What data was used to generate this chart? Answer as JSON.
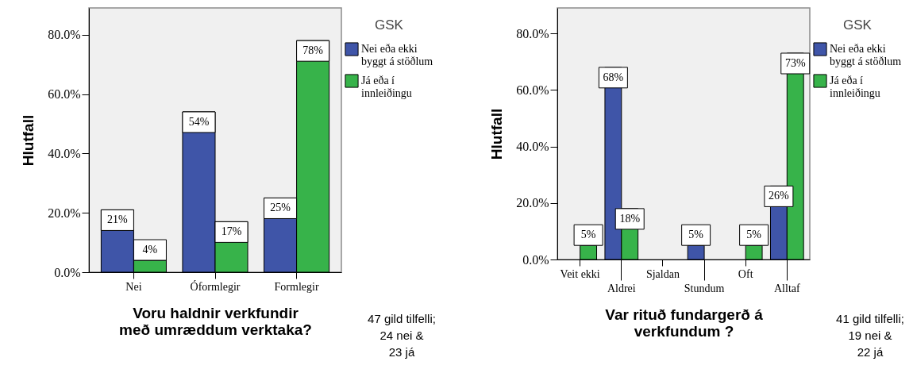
{
  "chart_data": [
    {
      "type": "bar",
      "categories": [
        "Nei",
        "Óformlegir",
        "Formlegir"
      ],
      "series": [
        {
          "name": "Nei eða ekki byggt á stöðlum",
          "color": "#3f55a8",
          "values": [
            21,
            54,
            25
          ],
          "value_labels": [
            "21%",
            "54%",
            "25%"
          ]
        },
        {
          "name": "Já eða í innleiðingu",
          "color": "#37b34a",
          "values": [
            4,
            17,
            78
          ],
          "value_labels": [
            "4%",
            "17%",
            "78%"
          ]
        }
      ],
      "xlabel": "Voru haldnir verkfundir með umræddum verktaka?",
      "ylabel": "Hlutfall",
      "legend_title": "GSK",
      "legend": "right",
      "ylim": [
        0,
        89
      ],
      "yticks": [
        {
          "value": 0,
          "label": "0.0%"
        },
        {
          "value": 20,
          "label": "20.0%"
        },
        {
          "value": 40,
          "label": "40.0%"
        },
        {
          "value": 60,
          "label": "60.0%"
        },
        {
          "value": 80,
          "label": "80.0%"
        }
      ],
      "annotations": [
        "47 gild tilfelli;\n24 nei &\n23 já"
      ]
    },
    {
      "type": "bar",
      "categories": [
        "Veit ekki",
        "Aldrei",
        "Sjaldan",
        "Stundum",
        "Oft",
        "Alltaf"
      ],
      "series": [
        {
          "name": "Nei eða ekki byggt á stöðlum",
          "color": "#3f55a8",
          "values": [
            null,
            68,
            null,
            5,
            null,
            26
          ],
          "value_labels": [
            null,
            "68%",
            null,
            "5%",
            null,
            "26%"
          ]
        },
        {
          "name": "Já eða í innleiðingu",
          "color": "#37b34a",
          "values": [
            5,
            18,
            null,
            null,
            5,
            73
          ],
          "value_labels": [
            "5%",
            "18%",
            null,
            null,
            "5%",
            "73%"
          ]
        }
      ],
      "xlabel": "Var rituð fundargerð á verkfundum ?",
      "ylabel": "Hlutfall",
      "legend_title": "GSK",
      "legend": "right",
      "ylim": [
        0,
        89
      ],
      "yticks": [
        {
          "value": 0,
          "label": "0.0%"
        },
        {
          "value": 20,
          "label": "20.0%"
        },
        {
          "value": 40,
          "label": "40.0%"
        },
        {
          "value": 60,
          "label": "60.0%"
        },
        {
          "value": 80,
          "label": "80.0%"
        }
      ],
      "annotations": [
        "41 gild tilfelli;\n19 nei &\n22 já"
      ]
    }
  ]
}
